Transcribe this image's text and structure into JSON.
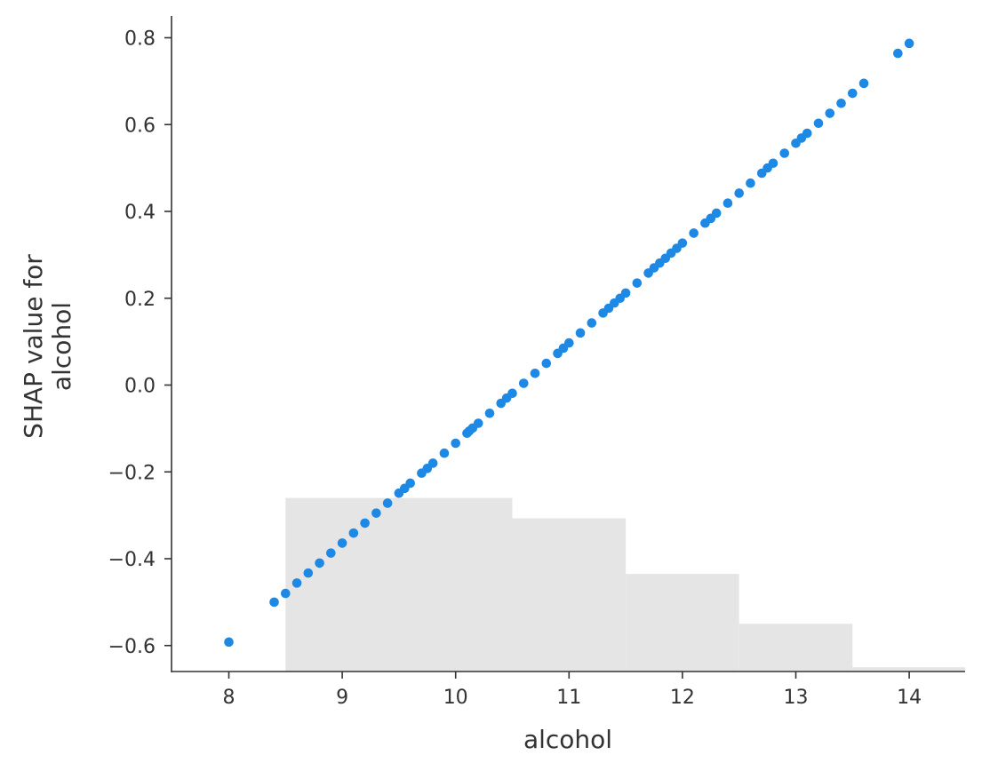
{
  "chart_data": {
    "type": "scatter",
    "xlabel": "alcohol",
    "ylabel_lines": [
      "SHAP value for",
      "alcohol"
    ],
    "xlim": [
      7.5,
      14.5
    ],
    "ylim": [
      -0.66,
      0.85
    ],
    "x_ticks": [
      8,
      9,
      10,
      11,
      12,
      13,
      14
    ],
    "x_tick_labels": [
      "8",
      "9",
      "10",
      "11",
      "12",
      "13",
      "14"
    ],
    "y_ticks": [
      -0.6,
      -0.4,
      -0.2,
      0.0,
      0.2,
      0.4,
      0.6,
      0.8
    ],
    "y_tick_labels": [
      "−0.6",
      "−0.4",
      "−0.2",
      "0.0",
      "0.2",
      "0.4",
      "0.6",
      "0.8"
    ],
    "grid": false,
    "colors": {
      "points": "#1e88e5",
      "histogram": "#e5e5e5",
      "axis": "#333333"
    },
    "histogram": {
      "description_free": true,
      "bins": [
        {
          "x0": 8.5,
          "x1": 10.5,
          "top": -0.26
        },
        {
          "x0": 10.5,
          "x1": 11.5,
          "top": -0.307
        },
        {
          "x0": 11.5,
          "x1": 12.5,
          "top": -0.435
        },
        {
          "x0": 12.5,
          "x1": 13.5,
          "top": -0.55
        },
        {
          "x0": 13.5,
          "x1": 14.5,
          "top": -0.65
        }
      ]
    },
    "slope": 0.2301,
    "intercept": -2.4334,
    "points_x": [
      8.0,
      8.4,
      8.5,
      8.6,
      8.7,
      8.8,
      8.9,
      9.0,
      9.1,
      9.2,
      9.3,
      9.4,
      9.5,
      9.55,
      9.6,
      9.7,
      9.75,
      9.8,
      9.9,
      10.0,
      10.1,
      10.12,
      10.15,
      10.2,
      10.3,
      10.4,
      10.45,
      10.5,
      10.6,
      10.7,
      10.8,
      10.9,
      10.95,
      11.0,
      11.1,
      11.2,
      11.3,
      11.35,
      11.4,
      11.45,
      11.5,
      11.6,
      11.7,
      11.75,
      11.8,
      11.85,
      11.9,
      11.95,
      12.0,
      12.1,
      12.2,
      12.25,
      12.3,
      12.4,
      12.5,
      12.6,
      12.7,
      12.75,
      12.8,
      12.9,
      13.0,
      13.05,
      13.1,
      13.2,
      13.3,
      13.4,
      13.5,
      13.6,
      13.9,
      14.0
    ],
    "points_y": [
      -0.592,
      -0.5,
      -0.48,
      -0.456,
      -0.433,
      -0.41,
      -0.387,
      -0.364,
      -0.341,
      -0.318,
      -0.295,
      -0.272,
      -0.249,
      -0.238,
      -0.226,
      -0.203,
      -0.192,
      -0.18,
      -0.157,
      -0.134,
      -0.111,
      -0.106,
      -0.099,
      -0.088,
      -0.065,
      -0.042,
      -0.03,
      -0.019,
      0.004,
      0.027,
      0.05,
      0.073,
      0.085,
      0.097,
      0.12,
      0.143,
      0.166,
      0.177,
      0.189,
      0.2,
      0.212,
      0.235,
      0.258,
      0.27,
      0.281,
      0.292,
      0.304,
      0.315,
      0.327,
      0.35,
      0.373,
      0.384,
      0.396,
      0.419,
      0.442,
      0.465,
      0.488,
      0.5,
      0.511,
      0.534,
      0.557,
      0.569,
      0.58,
      0.603,
      0.626,
      0.649,
      0.672,
      0.695,
      0.764,
      0.787
    ]
  }
}
